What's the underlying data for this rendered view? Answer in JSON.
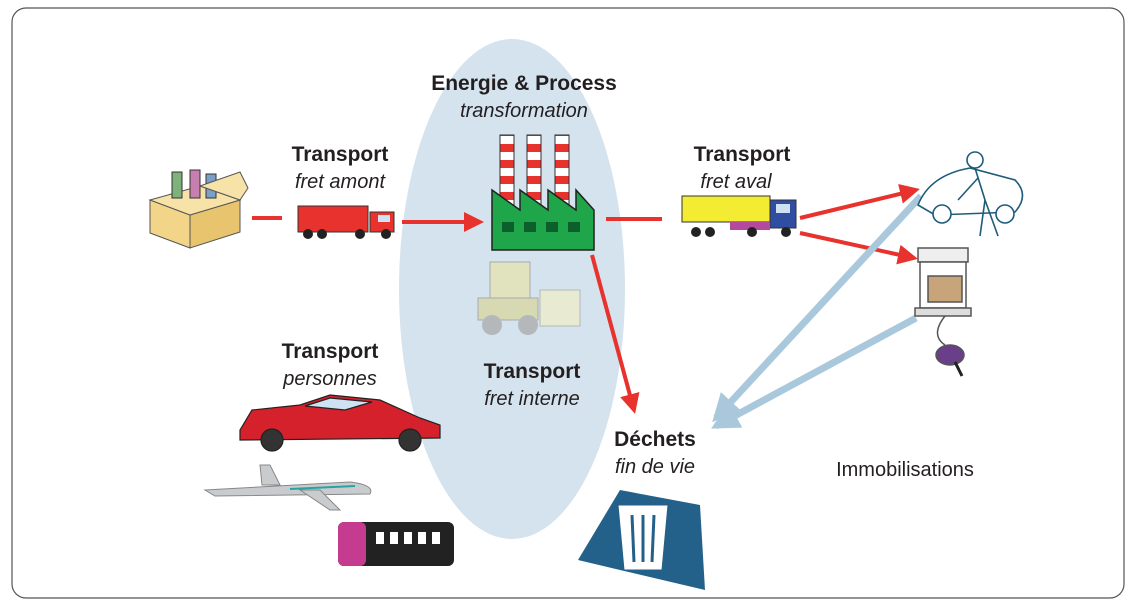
{
  "nodes": [
    {
      "title": "Energie & Process",
      "subtitle": "transformation"
    },
    {
      "title": "Transport",
      "subtitle": "fret amont"
    },
    {
      "title": "Transport",
      "subtitle": "fret aval"
    },
    {
      "title": "Transport",
      "subtitle": "personnes"
    },
    {
      "title": "Transport",
      "subtitle": "fret interne"
    },
    {
      "title": "Déchets",
      "subtitle": "fin de vie"
    },
    {
      "title": "Immobilisations"
    }
  ]
}
